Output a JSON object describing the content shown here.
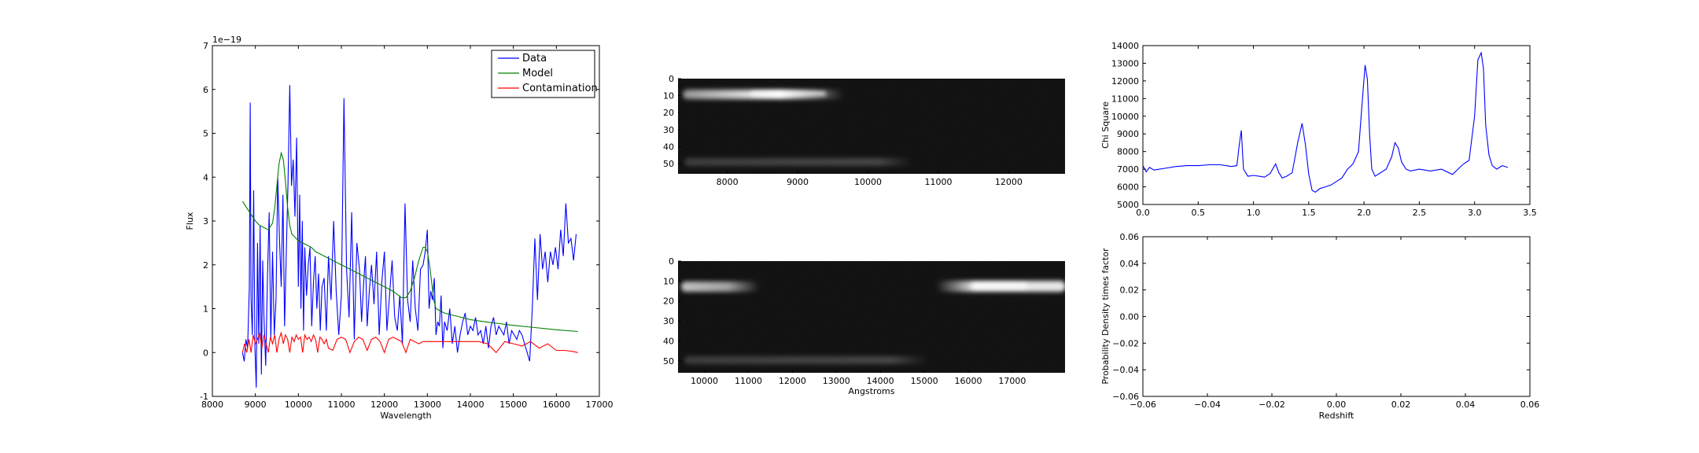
{
  "chart_data": [
    {
      "type": "line",
      "xlabel": "Wavelength",
      "ylabel": "Flux",
      "offset_text": "1e−19",
      "xlim": [
        8000,
        17000
      ],
      "ylim": [
        -1,
        7
      ],
      "xticks": [
        8000,
        9000,
        10000,
        11000,
        12000,
        13000,
        14000,
        15000,
        16000,
        17000
      ],
      "yticks": [
        -1,
        0,
        1,
        2,
        3,
        4,
        5,
        6,
        7
      ],
      "legend": "top-right",
      "series": [
        {
          "name": "Data",
          "color": "#0000ff",
          "x": [
            8700,
            8740,
            8780,
            8820,
            8860,
            8880,
            8900,
            8930,
            8960,
            8990,
            9020,
            9050,
            9080,
            9110,
            9140,
            9170,
            9200,
            9240,
            9280,
            9320,
            9360,
            9400,
            9440,
            9480,
            9520,
            9560,
            9600,
            9640,
            9680,
            9720,
            9760,
            9800,
            9840,
            9880,
            9920,
            9960,
            10000,
            10030,
            10060,
            10090,
            10120,
            10150,
            10190,
            10230,
            10270,
            10310,
            10350,
            10390,
            10430,
            10470,
            10510,
            10550,
            10600,
            10650,
            10700,
            10760,
            10820,
            10880,
            10940,
            11000,
            11060,
            11120,
            11180,
            11240,
            11300,
            11360,
            11420,
            11470,
            11520,
            11560,
            11600,
            11650,
            11700,
            11760,
            11820,
            11880,
            11940,
            12000,
            12060,
            12120,
            12180,
            12240,
            12300,
            12360,
            12420,
            12480,
            12540,
            12600,
            12660,
            12720,
            12780,
            12840,
            12900,
            12950,
            13000,
            13040,
            13080,
            13120,
            13160,
            13200,
            13240,
            13280,
            13320,
            13360,
            13400,
            13460,
            13520,
            13580,
            13640,
            13700,
            13760,
            13820,
            13880,
            13940,
            14000,
            14060,
            14120,
            14180,
            14240,
            14300,
            14360,
            14420,
            14480,
            14540,
            14600,
            14660,
            14720,
            14780,
            14840,
            14900,
            14960,
            15020,
            15080,
            15140,
            15200,
            15260,
            15320,
            15380,
            15440,
            15500,
            15560,
            15620,
            15680,
            15740,
            15800,
            15860,
            15920,
            15980,
            16040,
            16100,
            16160,
            16220,
            16280,
            16340,
            16400,
            16460
          ],
          "y": [
            0.0,
            -0.2,
            0.3,
            0.1,
            1.5,
            5.7,
            1.2,
            0.4,
            3.7,
            0.1,
            -0.8,
            2.5,
            0.2,
            2.9,
            -0.5,
            2.1,
            0.8,
            -0.3,
            1.7,
            3.2,
            0.3,
            2.3,
            0.4,
            1.2,
            4.0,
            2.6,
            1.5,
            3.6,
            0.6,
            2.3,
            3.9,
            6.1,
            3.8,
            4.4,
            3.1,
            4.9,
            1.5,
            3.6,
            1.0,
            3.0,
            0.5,
            2.4,
            1.3,
            2.0,
            2.4,
            0.6,
            1.6,
            2.2,
            1.0,
            1.8,
            0.5,
            1.5,
            1.7,
            0.5,
            2.2,
            1.2,
            3.0,
            1.4,
            0.4,
            1.3,
            5.8,
            1.9,
            0.8,
            3.2,
            0.3,
            2.5,
            1.9,
            0.7,
            1.6,
            2.2,
            0.6,
            1.4,
            2.0,
            1.1,
            2.3,
            0.4,
            1.6,
            2.3,
            0.5,
            1.3,
            2.1,
            0.8,
            0.5,
            1.3,
            0.2,
            3.4,
            1.2,
            0.7,
            2.1,
            1.0,
            0.5,
            1.9,
            2.0,
            2.3,
            2.8,
            1.0,
            1.4,
            1.2,
            1.7,
            0.4,
            0.7,
            0.6,
            1.3,
            0.1,
            0.7,
            0.5,
            1.0,
            0.2,
            0.6,
            0.0,
            0.4,
            0.7,
            0.9,
            0.4,
            0.6,
            0.5,
            0.8,
            0.4,
            0.5,
            0.2,
            0.6,
            0.1,
            0.6,
            0.8,
            0.4,
            0.6,
            0.5,
            0.4,
            0.7,
            0.2,
            0.5,
            0.4,
            0.3,
            0.5,
            0.4,
            0.2,
            0.0,
            -0.2,
            1.0,
            2.6,
            1.2,
            2.7,
            1.9,
            2.3,
            1.6,
            2.3,
            2.0,
            2.4,
            1.9,
            2.8,
            2.2,
            3.4,
            2.5,
            2.6,
            2.1,
            2.7
          ],
          "y_note_override": null
        },
        {
          "name": "Model",
          "color": "#008000",
          "x": [
            8700,
            8800,
            8900,
            9000,
            9100,
            9200,
            9300,
            9400,
            9450,
            9500,
            9550,
            9600,
            9650,
            9700,
            9750,
            9800,
            9850,
            9900,
            9950,
            10000,
            10100,
            10200,
            10300,
            10400,
            10500,
            10600,
            10700,
            10800,
            10900,
            11000,
            11200,
            11400,
            11600,
            11800,
            12000,
            12200,
            12400,
            12500,
            12600,
            12700,
            12800,
            12900,
            12950,
            13000,
            13050,
            13100,
            13150,
            13200,
            13300,
            13400,
            13600,
            13800,
            14000,
            14200,
            14500,
            15000,
            15500,
            16000,
            16500
          ],
          "y": [
            3.45,
            3.3,
            3.15,
            3.0,
            2.9,
            2.85,
            2.8,
            2.95,
            3.3,
            3.8,
            4.3,
            4.55,
            4.4,
            3.9,
            3.3,
            2.9,
            2.7,
            2.65,
            2.6,
            2.55,
            2.5,
            2.45,
            2.4,
            2.3,
            2.25,
            2.2,
            2.15,
            2.1,
            2.05,
            2.0,
            1.9,
            1.8,
            1.7,
            1.6,
            1.5,
            1.4,
            1.25,
            1.25,
            1.4,
            1.7,
            2.1,
            2.4,
            2.4,
            2.3,
            2.0,
            1.6,
            1.2,
            1.0,
            0.95,
            0.9,
            0.85,
            0.8,
            0.75,
            0.72,
            0.68,
            0.62,
            0.57,
            0.52,
            0.48
          ]
        },
        {
          "name": "Contamination",
          "color": "#ff0000",
          "x": [
            8700,
            8750,
            8800,
            8850,
            8900,
            8950,
            9000,
            9050,
            9100,
            9150,
            9200,
            9250,
            9300,
            9350,
            9400,
            9450,
            9500,
            9550,
            9600,
            9650,
            9700,
            9750,
            9800,
            9850,
            9900,
            9950,
            10000,
            10050,
            10100,
            10150,
            10200,
            10250,
            10300,
            10350,
            10400,
            10450,
            10500,
            10550,
            10600,
            10650,
            10700,
            10800,
            10900,
            11000,
            11100,
            11200,
            11300,
            11400,
            11500,
            11600,
            11700,
            11800,
            11900,
            12000,
            12100,
            12200,
            12300,
            12400,
            12500,
            12600,
            12700,
            12800,
            12900,
            13000,
            13200,
            13400,
            13600,
            13800,
            14000,
            14200,
            14400,
            14600,
            14800,
            15000,
            15200,
            15400,
            15600,
            15800,
            16000,
            16200,
            16400,
            16500
          ],
          "y": [
            0.0,
            0.2,
            0.0,
            0.3,
            0.0,
            0.4,
            0.2,
            0.3,
            0.45,
            0.1,
            0.4,
            0.2,
            0.0,
            0.35,
            0.2,
            0.4,
            0.0,
            0.3,
            0.45,
            0.2,
            0.4,
            0.3,
            0.0,
            0.35,
            0.25,
            0.4,
            0.3,
            0.35,
            0.0,
            0.4,
            0.3,
            0.35,
            0.25,
            0.4,
            0.3,
            0.0,
            0.35,
            0.3,
            0.2,
            0.3,
            0.1,
            0.05,
            0.3,
            0.35,
            0.3,
            0.0,
            0.25,
            0.35,
            0.3,
            0.05,
            0.3,
            0.35,
            0.25,
            0.0,
            0.3,
            0.35,
            0.3,
            0.25,
            0.0,
            0.3,
            0.25,
            0.2,
            0.25,
            0.25,
            0.25,
            0.25,
            0.25,
            0.25,
            0.25,
            0.25,
            0.2,
            0.0,
            0.25,
            0.2,
            0.15,
            0.25,
            0.1,
            0.2,
            0.05,
            0.05,
            0.02,
            0.0
          ]
        }
      ]
    },
    {
      "type": "heatmap",
      "xlim": [
        7300,
        12800
      ],
      "ylim": [
        56,
        0
      ],
      "xticks": [
        8000,
        9000,
        10000,
        11000,
        12000
      ],
      "yticks": [
        0,
        10,
        20,
        30,
        40,
        50
      ],
      "xlabel": ""
    },
    {
      "type": "heatmap",
      "xlim": [
        9400,
        18200
      ],
      "ylim": [
        56,
        0
      ],
      "xticks": [
        10000,
        11000,
        12000,
        13000,
        14000,
        15000,
        16000,
        17000
      ],
      "yticks": [
        0,
        10,
        20,
        30,
        40,
        50
      ],
      "xlabel": "Angstroms"
    },
    {
      "type": "line",
      "xlim": [
        0.0,
        3.5
      ],
      "ylim": [
        5000,
        14000
      ],
      "xticks": [
        "0.0",
        "0.5",
        "1.0",
        "1.5",
        "2.0",
        "2.5",
        "3.0",
        "3.5"
      ],
      "yticks": [
        5000,
        6000,
        7000,
        8000,
        9000,
        10000,
        11000,
        12000,
        13000,
        14000
      ],
      "xlabel": "",
      "ylabel": "Chi Square",
      "series": [
        {
          "color": "#0000ff",
          "x": [
            0.0,
            0.03,
            0.06,
            0.1,
            0.15,
            0.2,
            0.3,
            0.4,
            0.5,
            0.6,
            0.7,
            0.75,
            0.8,
            0.85,
            0.87,
            0.89,
            0.91,
            0.95,
            1.0,
            1.05,
            1.1,
            1.15,
            1.2,
            1.23,
            1.26,
            1.3,
            1.35,
            1.4,
            1.44,
            1.47,
            1.5,
            1.53,
            1.56,
            1.6,
            1.65,
            1.7,
            1.75,
            1.8,
            1.85,
            1.9,
            1.95,
            1.98,
            2.01,
            2.03,
            2.05,
            2.07,
            2.1,
            2.15,
            2.2,
            2.25,
            2.28,
            2.31,
            2.34,
            2.38,
            2.42,
            2.5,
            2.6,
            2.7,
            2.8,
            2.85,
            2.9,
            2.95,
            3.0,
            3.03,
            3.06,
            3.08,
            3.1,
            3.13,
            3.16,
            3.2,
            3.25,
            3.3
          ],
          "y": [
            7200,
            6850,
            7100,
            6950,
            7000,
            7050,
            7150,
            7200,
            7200,
            7250,
            7250,
            7200,
            7150,
            7200,
            8300,
            9200,
            7000,
            6600,
            6650,
            6600,
            6550,
            6750,
            7300,
            6800,
            6500,
            6600,
            6800,
            8500,
            9600,
            8400,
            6700,
            5800,
            5700,
            5900,
            6000,
            6100,
            6300,
            6500,
            7000,
            7300,
            8000,
            10500,
            12900,
            12100,
            9000,
            7000,
            6600,
            6800,
            7000,
            7700,
            8500,
            8200,
            7400,
            7000,
            6900,
            7000,
            6900,
            7000,
            6700,
            7000,
            7300,
            7500,
            10000,
            13200,
            13600,
            12700,
            9500,
            7800,
            7200,
            7000,
            7200,
            7100
          ]
        }
      ]
    },
    {
      "type": "line",
      "xlim": [
        -0.06,
        0.06
      ],
      "ylim": [
        -0.06,
        0.06
      ],
      "xticks": [
        "−0.06",
        "−0.04",
        "−0.02",
        "0.00",
        "0.02",
        "0.04",
        "0.06"
      ],
      "yticks": [
        "−0.06",
        "−0.04",
        "−0.02",
        "0.00",
        "0.02",
        "0.04",
        "0.06"
      ],
      "xlabel": "Redshift",
      "ylabel": "Probability Density times factor",
      "series": []
    }
  ]
}
